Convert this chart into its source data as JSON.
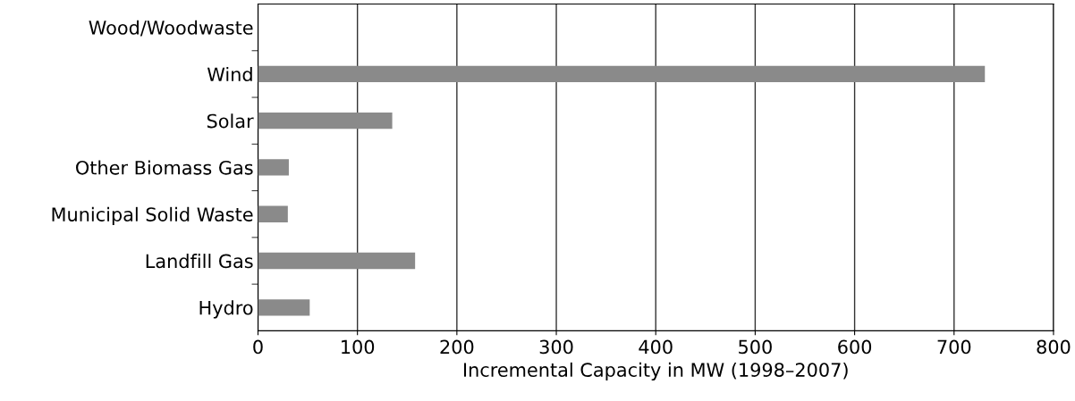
{
  "chart_data": {
    "type": "bar",
    "orientation": "horizontal",
    "xlabel": "Incremental Capacity in MW (1998–2007)",
    "categories": [
      "Wood/Woodwaste",
      "Wind",
      "Solar",
      "Other Biomass Gas",
      "Municipal Solid Waste",
      "Landfill Gas",
      "Hydro"
    ],
    "values": [
      0,
      731,
      135,
      31,
      30,
      158,
      52
    ],
    "color": "#8a8a8a",
    "xlim": [
      0,
      800
    ],
    "xticks": [
      0,
      100,
      200,
      300,
      400,
      500,
      600,
      700,
      800
    ],
    "grid": "x"
  }
}
